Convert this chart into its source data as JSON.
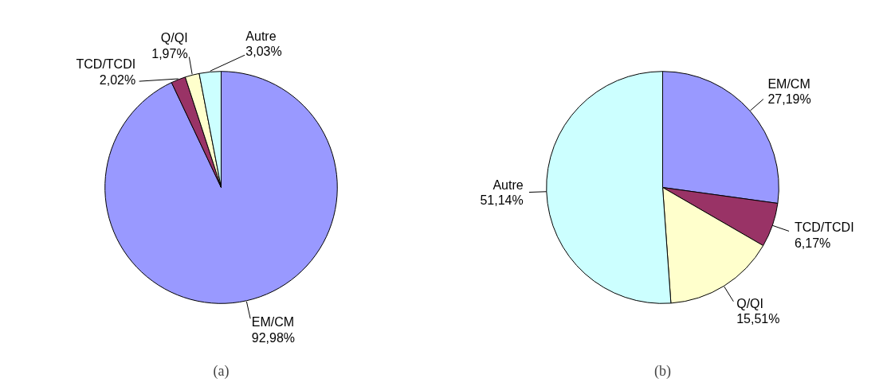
{
  "chart_data": [
    {
      "type": "pie",
      "title": "(a)",
      "categories": [
        "EM/CM",
        "TCD/TCDI",
        "Q/QI",
        "Autre"
      ],
      "values": [
        92.98,
        2.02,
        1.97,
        3.03
      ],
      "value_labels": [
        "92,98%",
        "2,02%",
        "1,97%",
        "3,03%"
      ],
      "colors": [
        "#9999ff",
        "#993366",
        "#ffffcc",
        "#ccffff"
      ]
    },
    {
      "type": "pie",
      "title": "(b)",
      "categories": [
        "EM/CM",
        "TCD/TCDI",
        "Q/QI",
        "Autre"
      ],
      "values": [
        27.19,
        6.17,
        15.51,
        51.14
      ],
      "value_labels": [
        "27,19%",
        "6,17%",
        "15,51%",
        "51,14%"
      ],
      "colors": [
        "#9999ff",
        "#993366",
        "#ffffcc",
        "#ccffff"
      ]
    }
  ]
}
